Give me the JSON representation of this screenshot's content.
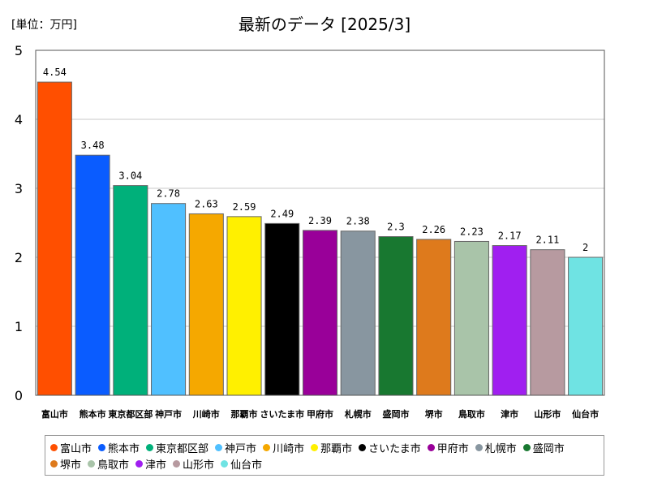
{
  "header": {
    "unit": "[単位：万円]"
  },
  "chart_data": {
    "type": "bar",
    "title": "最新のデータ [2025/3]",
    "xlabel": "",
    "ylabel": "",
    "ylim": [
      0,
      5
    ],
    "yticks": [
      0,
      1,
      2,
      3,
      4,
      5
    ],
    "grid": true,
    "legend_position": "bottom",
    "categories": [
      "富山市",
      "熊本市",
      "東京都区部",
      "神戸市",
      "川崎市",
      "那覇市",
      "さいたま市",
      "甲府市",
      "札幌市",
      "盛岡市",
      "堺市",
      "鳥取市",
      "津市",
      "山形市",
      "仙台市"
    ],
    "values": [
      4.54,
      3.48,
      3.04,
      2.78,
      2.63,
      2.59,
      2.49,
      2.39,
      2.38,
      2.3,
      2.26,
      2.23,
      2.17,
      2.11,
      2
    ],
    "value_labels": [
      "4.54",
      "3.48",
      "3.04",
      "2.78",
      "2.63",
      "2.59",
      "2.49",
      "2.39",
      "2.38",
      "2.3",
      "2.26",
      "2.23",
      "2.17",
      "2.11",
      "2"
    ],
    "colors": [
      "#ff4f00",
      "#0a5cff",
      "#00b07a",
      "#50c0ff",
      "#f5a800",
      "#fff000",
      "#000000",
      "#990099",
      "#8896a0",
      "#187830",
      "#de7a1c",
      "#a9c4a9",
      "#a01ff0",
      "#b79aa0",
      "#6fe3e3"
    ]
  }
}
